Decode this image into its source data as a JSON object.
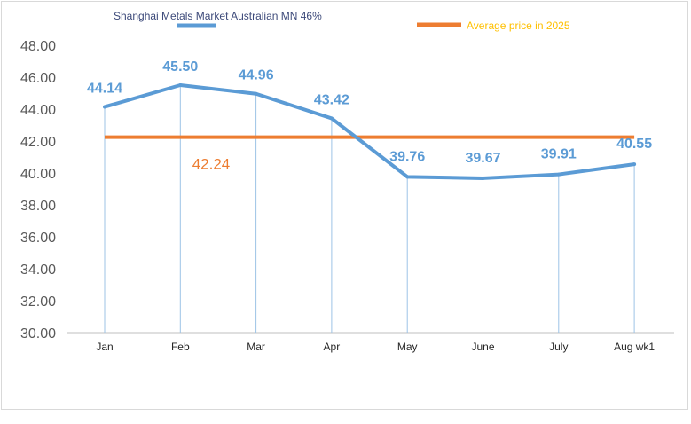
{
  "chart_data": {
    "type": "line",
    "categories": [
      "Jan",
      "Feb",
      "Mar",
      "Apr",
      "May",
      "June",
      "July",
      "Aug wk1"
    ],
    "series": [
      {
        "name": "Shanghai Metals Market Australian MN 46%",
        "values": [
          44.14,
          45.5,
          44.96,
          43.42,
          39.76,
          39.67,
          39.91,
          40.55
        ],
        "labels": [
          "44.14",
          "45.50",
          "44.96",
          "43.42",
          "39.76",
          "39.67",
          "39.91",
          "40.55"
        ],
        "color": "#5b9bd5"
      },
      {
        "name": "Average price in 2025",
        "value": 42.24,
        "label": "42.24",
        "color": "#ed7d31"
      }
    ],
    "y_ticks": [
      "48.00",
      "46.00",
      "44.00",
      "42.00",
      "40.00",
      "38.00",
      "36.00",
      "34.00",
      "32.00",
      "30.00"
    ],
    "ylim": [
      30,
      48
    ],
    "grid": false,
    "drop_lines": true,
    "legend_position": "top",
    "legend_colors": {
      "primary": "#3d4a7a",
      "average": "#ffc000"
    }
  }
}
